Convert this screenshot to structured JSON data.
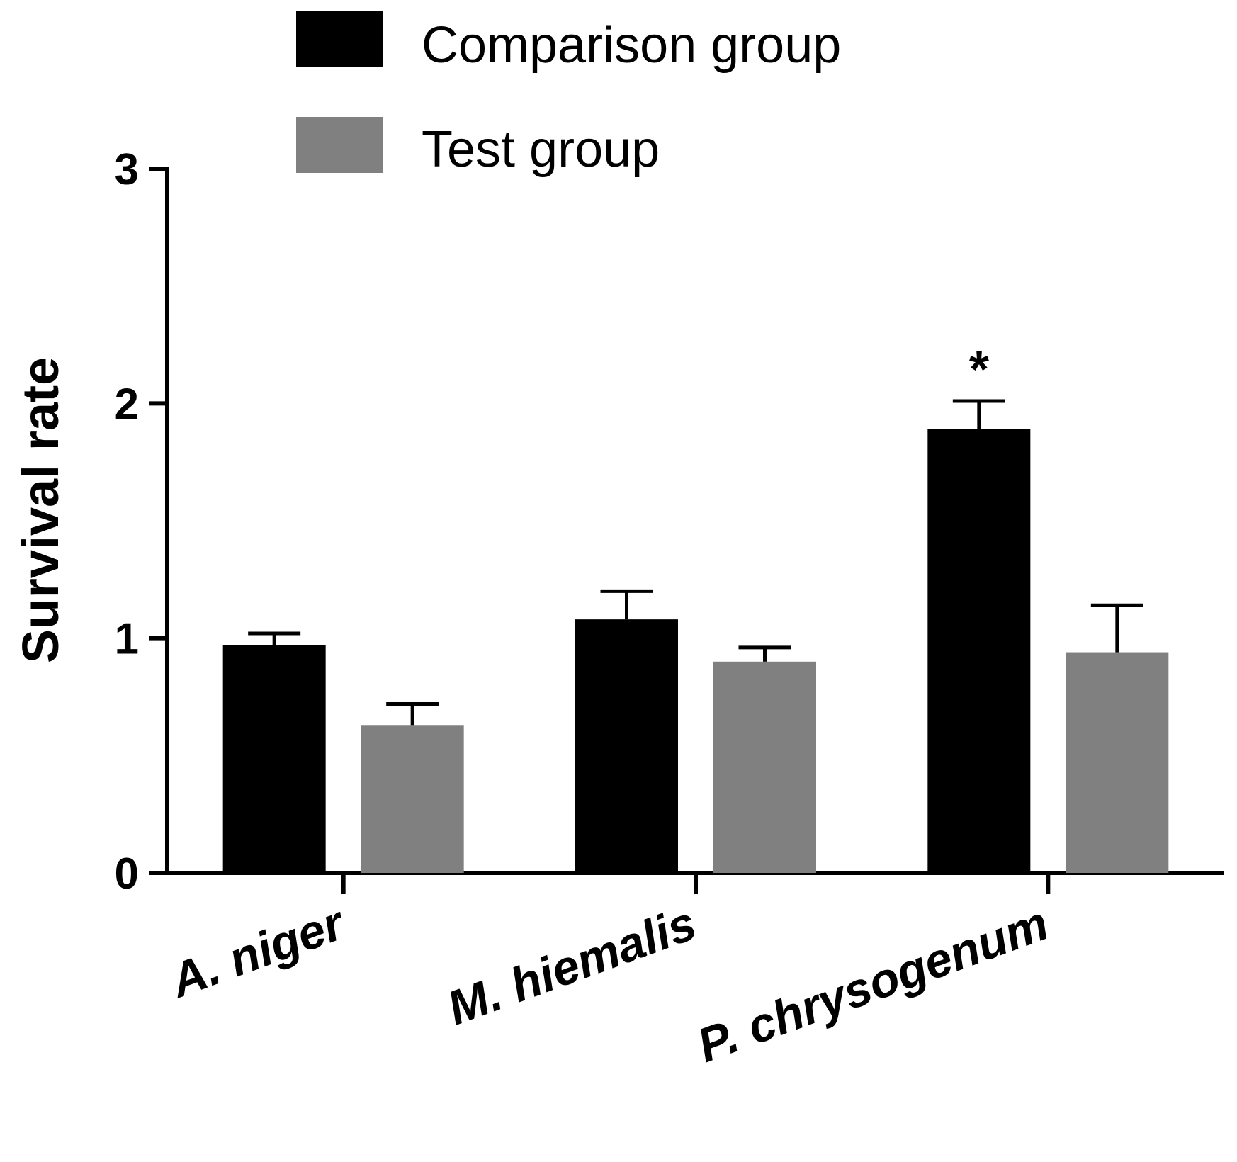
{
  "chart_data": {
    "type": "bar",
    "title": "",
    "xlabel": "",
    "ylabel": "Survival rate",
    "ylim": [
      0,
      3
    ],
    "yticks": [
      "0",
      "1",
      "2",
      "3"
    ],
    "grid": false,
    "legend_position": "top",
    "categories": [
      "A. niger",
      "M. hiemalis",
      "P. chrysogenum"
    ],
    "series": [
      {
        "name": "Comparison group",
        "color": "#000000",
        "values": [
          0.97,
          1.08,
          1.89
        ],
        "errors": [
          0.05,
          0.12,
          0.12
        ]
      },
      {
        "name": "Test group",
        "color": "#808080",
        "values": [
          0.63,
          0.9,
          0.94
        ],
        "errors": [
          0.09,
          0.06,
          0.2
        ]
      }
    ],
    "annotations": [
      {
        "category": "P. chrysogenum",
        "series": "Comparison group",
        "text": "*"
      }
    ]
  }
}
